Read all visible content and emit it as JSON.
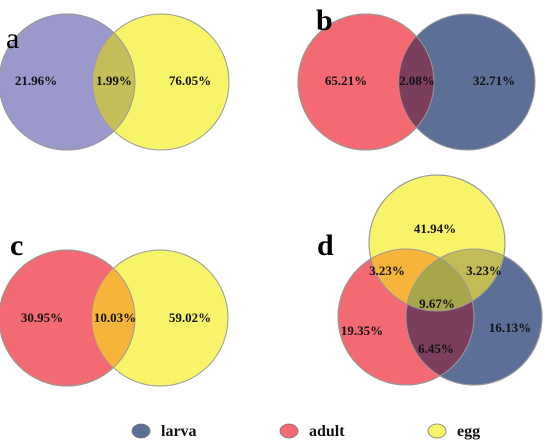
{
  "colors": {
    "larva": "#5c6f96",
    "adult": "#f36a72",
    "egg": "#f7f46a",
    "larva_egg_overlap": "#c3bb55",
    "adult_larva_overlap": "#7b3f5d",
    "adult_egg_overlap": "#f6b43a",
    "all_overlap": "#a8a64a",
    "a_larva": "#9b99cc",
    "a_overlap": "#c5bd5a"
  },
  "legend": [
    {
      "label": "larva",
      "color": "#5c6f96"
    },
    {
      "label": "adult",
      "color": "#f36a72"
    },
    {
      "label": "egg",
      "color": "#f7f46a"
    }
  ],
  "panels": {
    "a": {
      "label": "a",
      "left": "21.96%",
      "overlap": "1.99%",
      "right": "76.05%"
    },
    "b": {
      "label": "b",
      "left": "65.21%",
      "overlap": "2.08%",
      "right": "32.71%"
    },
    "c": {
      "label": "c",
      "left": "30.95%",
      "overlap": "10.03%",
      "right": "59.02%"
    },
    "d": {
      "label": "d",
      "egg_only": "41.94%",
      "adult_egg": "3.23%",
      "larva_egg": "3.23%",
      "all_three": "9.67%",
      "adult_only": "19.35%",
      "adult_larva": "6.45%",
      "larva_only": "16.13%"
    }
  }
}
